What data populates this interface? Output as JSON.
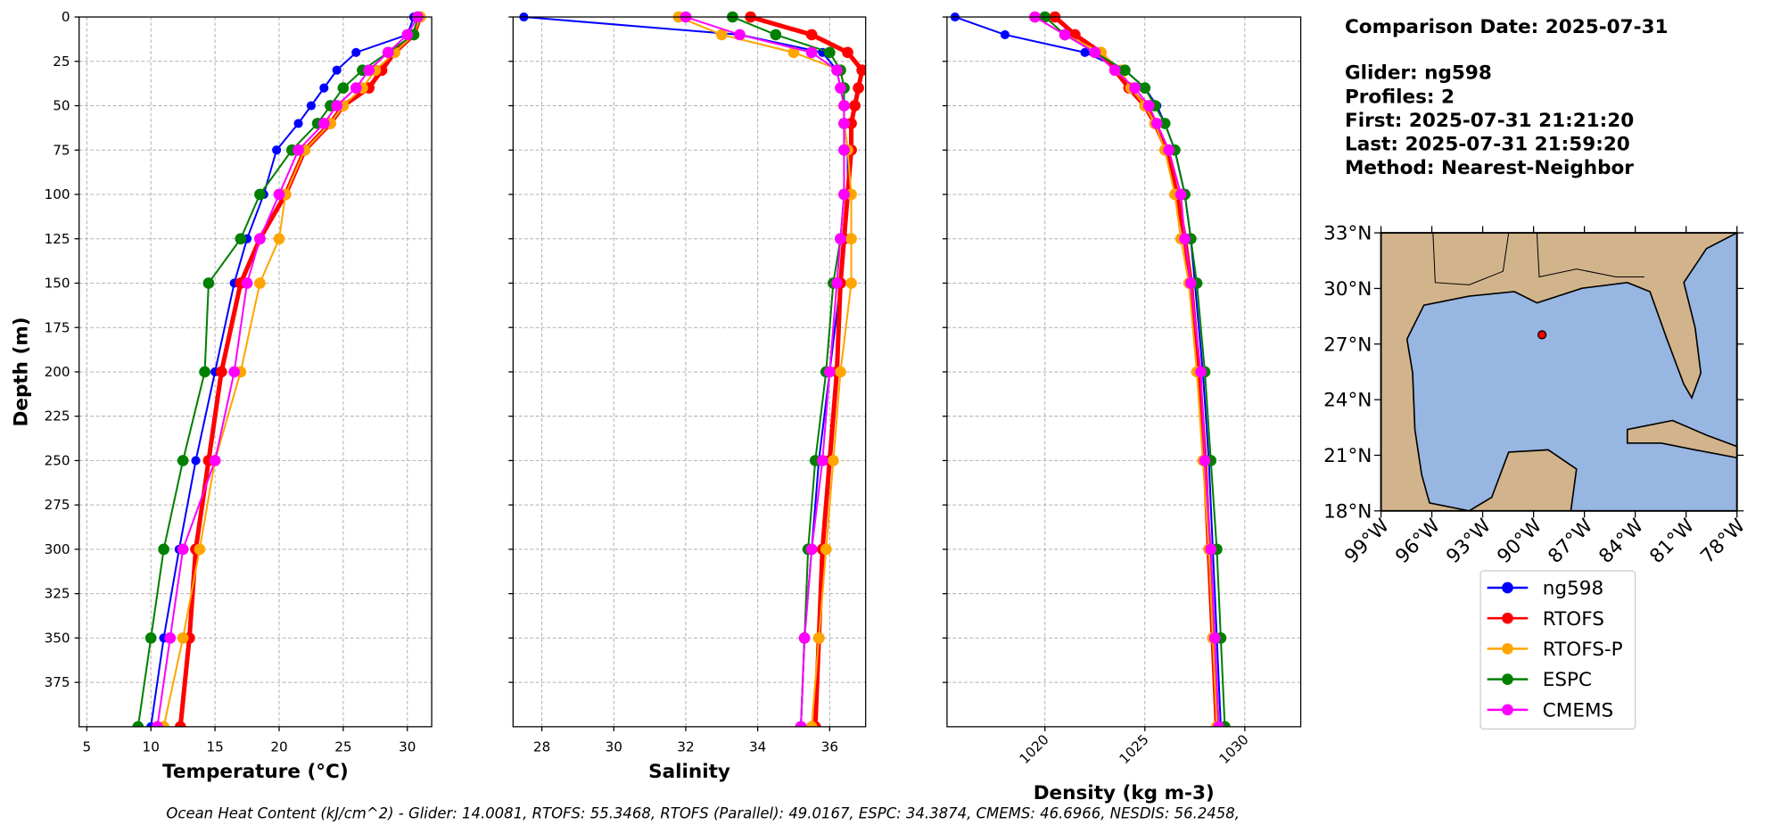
{
  "chart_data": [
    {
      "type": "line",
      "xlabel": "Temperature (°C)",
      "ylabel": "Depth (m)",
      "xlim": [
        4.4,
        31.9
      ],
      "ylim": [
        0,
        400
      ],
      "y_inverted": true,
      "grid": true,
      "legend": true,
      "show_ytick_labels": true,
      "xticks": [
        5,
        10,
        15,
        20,
        25,
        30
      ],
      "yticks": [
        0,
        25,
        50,
        75,
        100,
        125,
        150,
        175,
        200,
        225,
        250,
        275,
        300,
        325,
        350,
        375
      ],
      "depth": [
        0,
        10,
        20,
        30,
        40,
        50,
        60,
        75,
        100,
        125,
        150,
        200,
        250,
        300,
        350,
        400
      ],
      "series": [
        {
          "name": "ng598",
          "color": "#0000ff",
          "values": [
            30.5,
            30,
            26,
            24.5,
            23.5,
            22.5,
            21.5,
            19.8,
            18.8,
            17.5,
            16.5,
            15,
            13.5,
            12.2,
            11,
            10
          ]
        },
        {
          "name": "RTOFS",
          "color": "#ff0000",
          "values": [
            31,
            30.5,
            29,
            28,
            27,
            25,
            24,
            22,
            20.5,
            18.5,
            17,
            15.5,
            14.5,
            13.5,
            13,
            12.3
          ]
        },
        {
          "name": "RTOFS-P",
          "color": "#ffa500",
          "values": [
            31,
            30.5,
            29,
            27.5,
            26.5,
            25,
            24,
            22,
            20.5,
            20,
            18.5,
            17,
            15,
            13.8,
            12.5,
            11
          ]
        },
        {
          "name": "ESPC",
          "color": "#008000",
          "values": [
            30.8,
            30.5,
            28.5,
            26.5,
            25,
            24,
            23,
            21,
            18.5,
            17,
            14.5,
            14.2,
            12.5,
            11,
            10,
            9
          ]
        },
        {
          "name": "CMEMS",
          "color": "#ff00ff",
          "values": [
            30.8,
            30,
            28.5,
            27,
            26,
            24.5,
            23.5,
            21.5,
            20,
            18.5,
            17.5,
            16.5,
            15,
            12.5,
            11.5,
            10.5
          ]
        }
      ]
    },
    {
      "type": "line",
      "xlabel": "Salinity",
      "xlim": [
        27.2,
        37
      ],
      "ylim": [
        0,
        400
      ],
      "y_inverted": true,
      "grid": true,
      "show_ytick_labels": false,
      "xticks": [
        28,
        30,
        32,
        34,
        36
      ],
      "yticks": [
        0,
        25,
        50,
        75,
        100,
        125,
        150,
        175,
        200,
        225,
        250,
        275,
        300,
        325,
        350,
        375
      ],
      "depth": [
        0,
        10,
        20,
        30,
        40,
        50,
        60,
        75,
        100,
        125,
        150,
        200,
        250,
        300,
        350,
        400
      ],
      "series": [
        {
          "name": "ng598",
          "color": "#0000ff",
          "values": [
            27.5,
            33.5,
            35.8,
            36.2,
            36.3,
            36.4,
            36.4,
            36.5,
            36.5,
            36.4,
            36.3,
            36.0,
            35.7,
            35.5,
            35.3,
            35.2
          ]
        },
        {
          "name": "RTOFS",
          "color": "#ff0000",
          "values": [
            33.8,
            35.5,
            36.5,
            36.9,
            36.8,
            36.7,
            36.6,
            36.6,
            36.5,
            36.4,
            36.3,
            36.2,
            36.0,
            35.8,
            35.7,
            35.6
          ]
        },
        {
          "name": "RTOFS-P",
          "color": "#ffa500",
          "values": [
            31.8,
            33,
            35,
            36.3,
            36.4,
            36.4,
            36.4,
            36.5,
            36.6,
            36.6,
            36.6,
            36.3,
            36.1,
            35.9,
            35.7,
            35.5
          ]
        },
        {
          "name": "ESPC",
          "color": "#008000",
          "values": [
            33.3,
            34.5,
            36,
            36.3,
            36.4,
            36.4,
            36.4,
            36.4,
            36.4,
            36.3,
            36.1,
            35.9,
            35.6,
            35.4,
            35.3,
            35.2
          ]
        },
        {
          "name": "CMEMS",
          "color": "#ff00ff",
          "values": [
            32,
            33.5,
            35.5,
            36.2,
            36.3,
            36.4,
            36.4,
            36.4,
            36.4,
            36.3,
            36.2,
            36.0,
            35.8,
            35.5,
            35.3,
            35.2
          ]
        }
      ]
    },
    {
      "type": "line",
      "xlabel": "Density (kg m-3)",
      "xlim": [
        1015.1,
        1032.8
      ],
      "ylim": [
        0,
        400
      ],
      "y_inverted": true,
      "grid": true,
      "show_ytick_labels": false,
      "xtick_rotation": 45,
      "xticks": [
        1020,
        1025,
        1030
      ],
      "yticks": [
        0,
        25,
        50,
        75,
        100,
        125,
        150,
        175,
        200,
        225,
        250,
        275,
        300,
        325,
        350,
        375
      ],
      "depth": [
        0,
        10,
        20,
        30,
        40,
        50,
        60,
        75,
        100,
        125,
        150,
        200,
        250,
        300,
        350,
        400
      ],
      "series": [
        {
          "name": "ng598",
          "color": "#0000ff",
          "values": [
            1015.5,
            1018,
            1022,
            1024,
            1025,
            1025.6,
            1026,
            1026.5,
            1027,
            1027.3,
            1027.5,
            1027.9,
            1028.2,
            1028.4,
            1028.6,
            1028.8
          ]
        },
        {
          "name": "RTOFS",
          "color": "#ff0000",
          "values": [
            1020.5,
            1021.5,
            1022.8,
            1023.5,
            1024.2,
            1025,
            1025.5,
            1026.1,
            1026.6,
            1027,
            1027.3,
            1027.7,
            1028,
            1028.2,
            1028.4,
            1028.6
          ]
        },
        {
          "name": "RTOFS-P",
          "color": "#ffa500",
          "values": [
            1019.5,
            1021,
            1022.8,
            1023.8,
            1024.3,
            1025,
            1025.5,
            1026,
            1026.5,
            1026.8,
            1027.2,
            1027.6,
            1027.9,
            1028.2,
            1028.4,
            1028.6
          ]
        },
        {
          "name": "ESPC",
          "color": "#008000",
          "values": [
            1020,
            1021,
            1022.5,
            1024,
            1025,
            1025.5,
            1026,
            1026.5,
            1027,
            1027.3,
            1027.6,
            1028,
            1028.3,
            1028.6,
            1028.8,
            1029
          ]
        },
        {
          "name": "CMEMS",
          "color": "#ff00ff",
          "values": [
            1019.5,
            1021,
            1022.5,
            1023.5,
            1024.5,
            1025.2,
            1025.6,
            1026.2,
            1026.8,
            1027,
            1027.3,
            1027.8,
            1028,
            1028.3,
            1028.5,
            1028.7
          ]
        }
      ]
    }
  ],
  "info": [
    "Comparison Date: 2025-07-31",
    "Glider: ng598",
    "Profiles: 2",
    "First: 2025-07-31 21:21:20",
    "Last: 2025-07-31 21:59:20",
    "Method: Nearest-Neighbor"
  ],
  "map": {
    "lonlim": [
      -99,
      -78
    ],
    "latlim": [
      18,
      33
    ],
    "glider_position": [
      -89.5,
      27.5
    ],
    "marker_color": "#ff0000",
    "lat_ticks": [
      {
        "value": 33,
        "label": "33°N"
      },
      {
        "value": 30,
        "label": "30°N"
      },
      {
        "value": 27,
        "label": "27°N"
      },
      {
        "value": 24,
        "label": "24°N"
      },
      {
        "value": 21,
        "label": "21°N"
      },
      {
        "value": 18,
        "label": "18°N"
      }
    ],
    "lon_ticks": [
      {
        "value": -99,
        "label": "99°W"
      },
      {
        "value": -96,
        "label": "96°W"
      },
      {
        "value": -93,
        "label": "93°W"
      },
      {
        "value": -90,
        "label": "90°W"
      },
      {
        "value": -87,
        "label": "87°W"
      },
      {
        "value": -84,
        "label": "84°W"
      },
      {
        "value": -81,
        "label": "81°W"
      },
      {
        "value": -78,
        "label": "78°W"
      }
    ]
  },
  "footer": "Ocean Heat Content (kJ/cm^2) - Glider: 14.0081,  RTOFS: 55.3468,  RTOFS (Parallel): 49.0167,  ESPC: 34.3874,  CMEMS: 46.6966,  NESDIS: 56.2458,"
}
